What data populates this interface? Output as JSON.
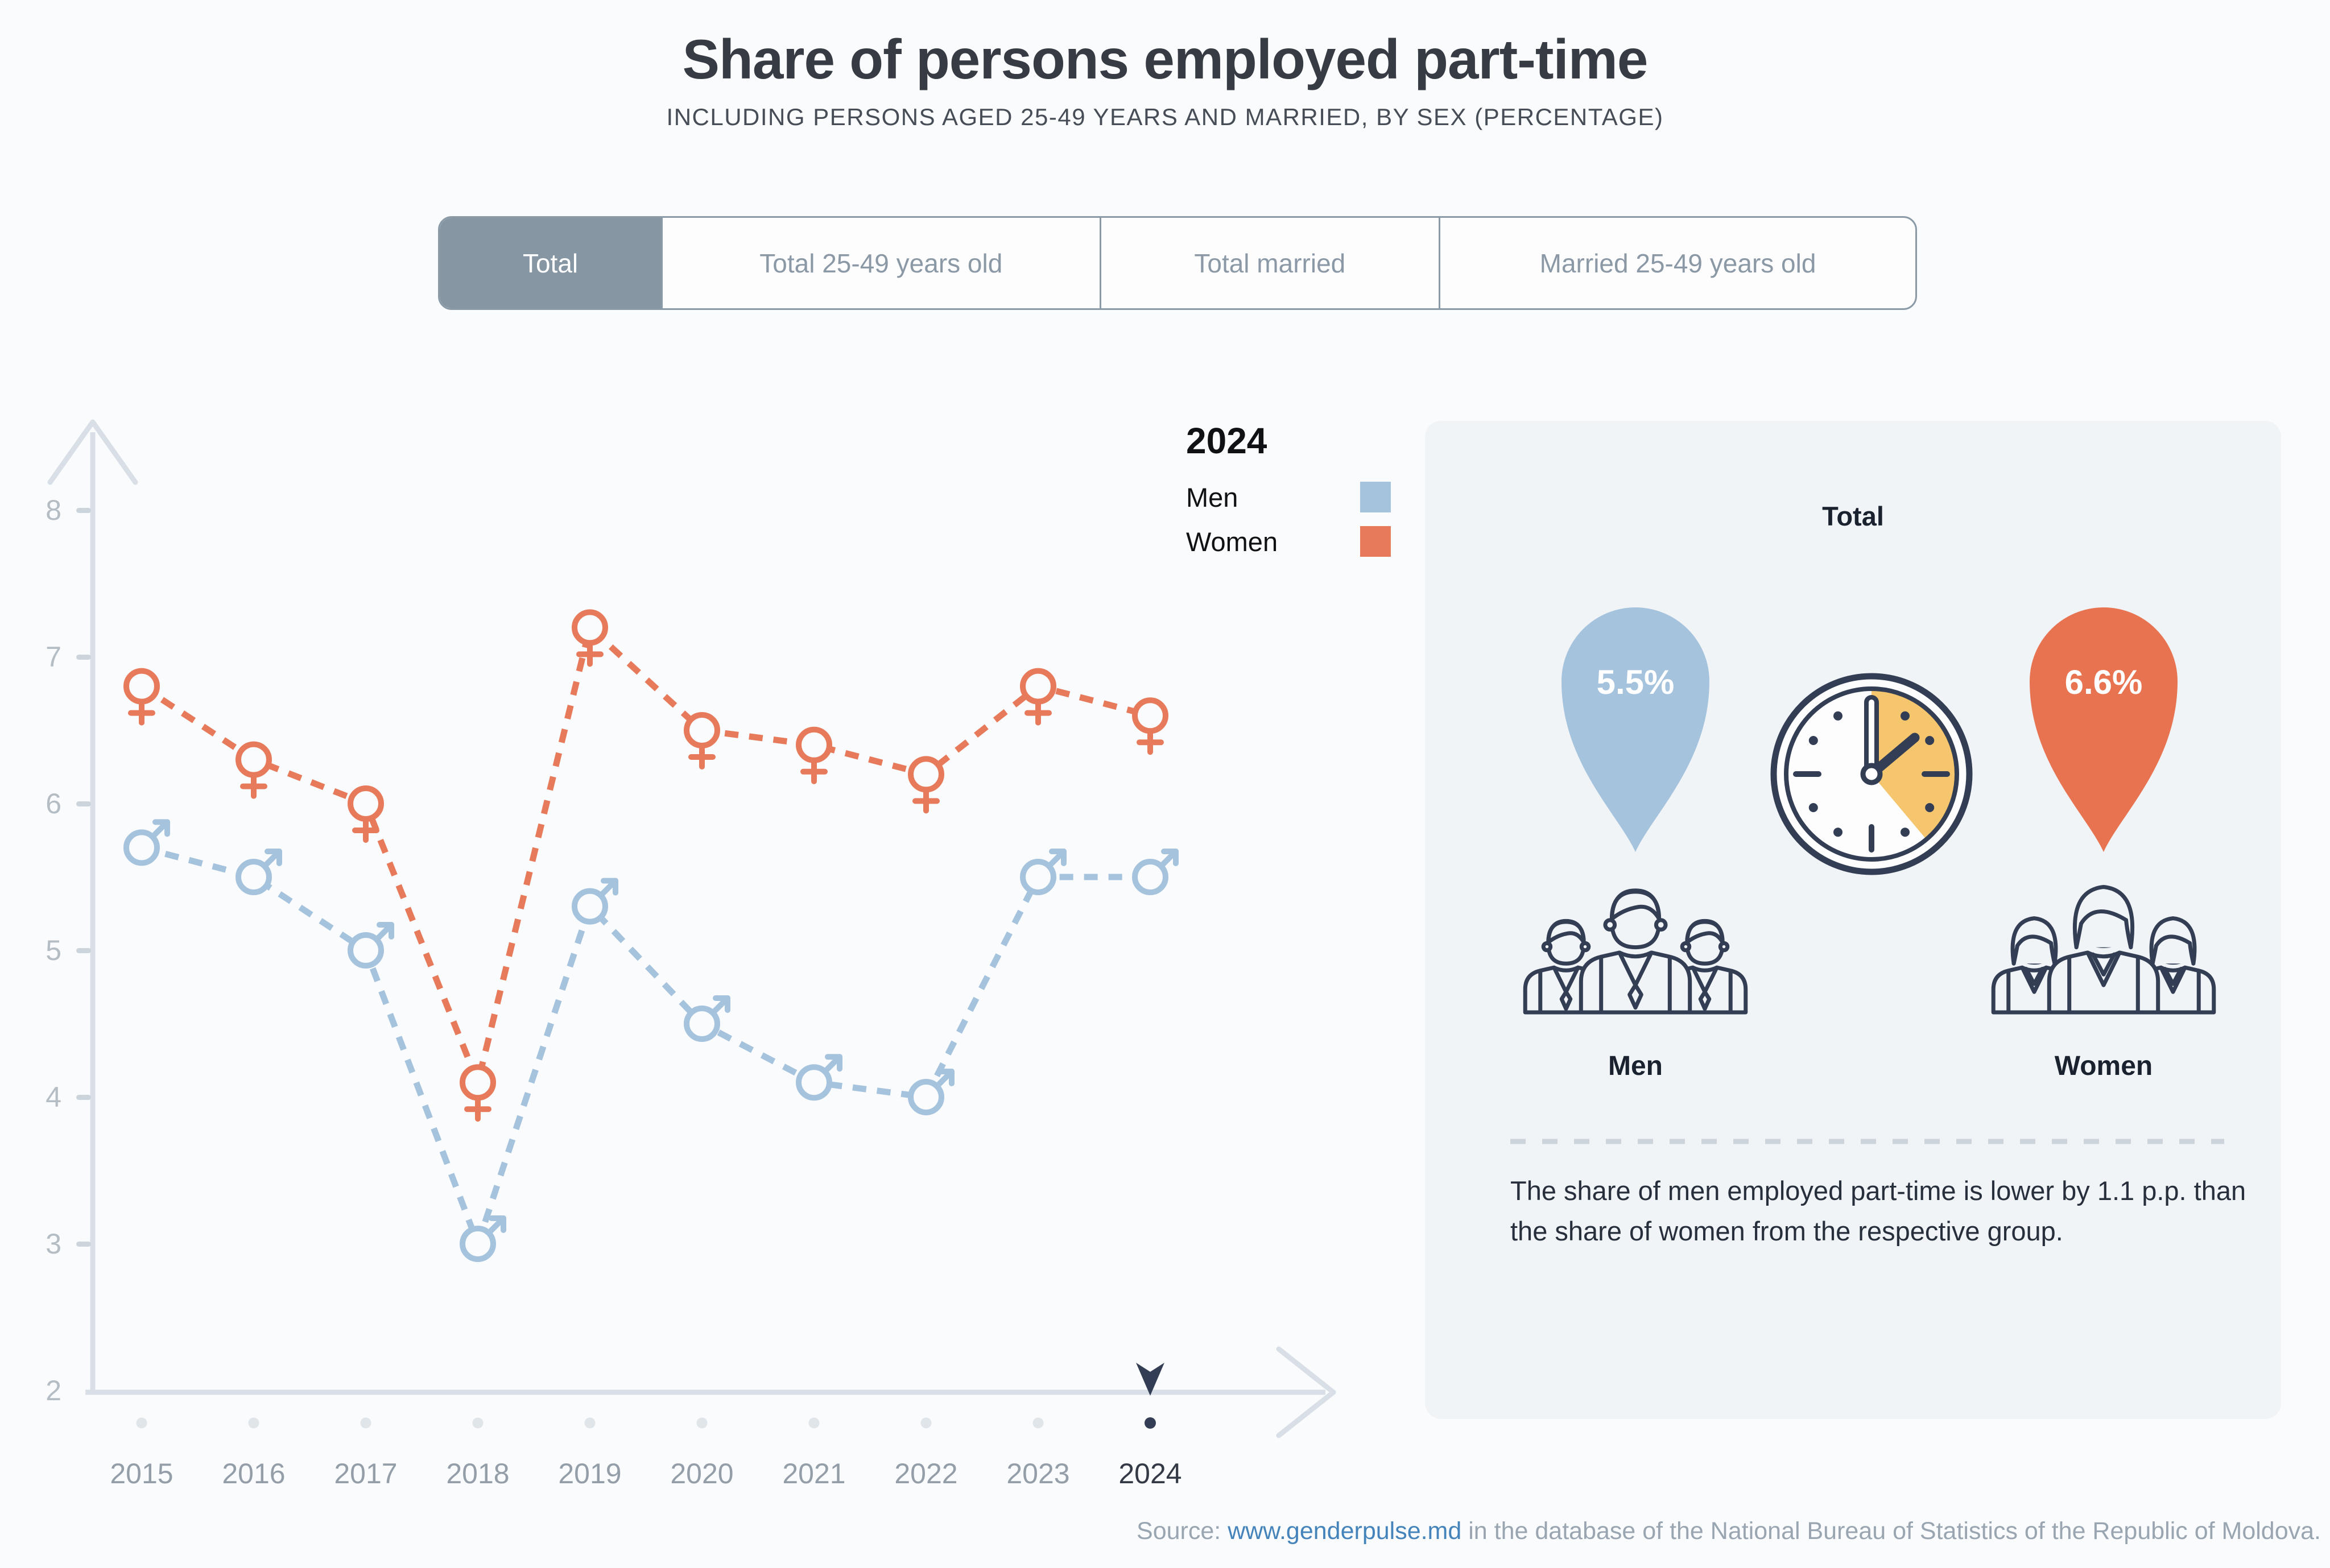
{
  "title": "Share of persons employed part-time",
  "subtitle": "INCLUDING PERSONS AGED 25-49 YEARS AND MARRIED, BY SEX (PERCENTAGE)",
  "tabs": [
    {
      "label": "Total",
      "active": true
    },
    {
      "label": "Total 25-49 years old",
      "active": false
    },
    {
      "label": "Total married",
      "active": false
    },
    {
      "label": "Married 25-49 years old",
      "active": false
    }
  ],
  "legend": {
    "year": "2024",
    "men": "Men",
    "women": "Women"
  },
  "chart_data": {
    "type": "line",
    "title": "Share of persons employed part-time",
    "categories": [
      "2015",
      "2016",
      "2017",
      "2018",
      "2019",
      "2020",
      "2021",
      "2022",
      "2023",
      "2024"
    ],
    "series": [
      {
        "name": "Men",
        "marker": "male",
        "color": "#a6c3de",
        "values": [
          5.7,
          5.5,
          5.0,
          3.0,
          5.3,
          4.5,
          4.1,
          4.0,
          5.5,
          5.5
        ]
      },
      {
        "name": "Women",
        "marker": "female",
        "color": "#e87a5c",
        "values": [
          6.8,
          6.3,
          6.0,
          4.1,
          7.2,
          6.5,
          6.4,
          6.2,
          6.8,
          6.6
        ]
      }
    ],
    "ylim": [
      2,
      8
    ],
    "xlabel": "",
    "ylabel": "",
    "grid": false,
    "line_style": "dashed",
    "legend_position": "top-right",
    "highlight_year": "2024"
  },
  "panel": {
    "heading": "Total",
    "men_value": "5.5%",
    "women_value": "6.6%",
    "men_label": "Men",
    "women_label": "Women",
    "note": "The share of men employed part-time is lower by 1.1 p.p. than the share of women from the respective group."
  },
  "source": {
    "prefix": "Source: ",
    "link": "www.genderpulse.md",
    "suffix": " in the database of the National Bureau of Statistics of the Republic of Moldova."
  },
  "colors": {
    "men": "#a6c3de",
    "women": "#e87a5c",
    "men_balloon": "#a6c3de",
    "women_balloon": "#e87351",
    "navy": "#333e55",
    "clock_sector": "#f5c66d",
    "axis": "#d9dfe6",
    "tick": "#ccd4dc",
    "tick_label": "#b4bcc4",
    "year_label": "#939ea9",
    "dot": "#e0e5ea",
    "active_tab": "#8796a3"
  }
}
